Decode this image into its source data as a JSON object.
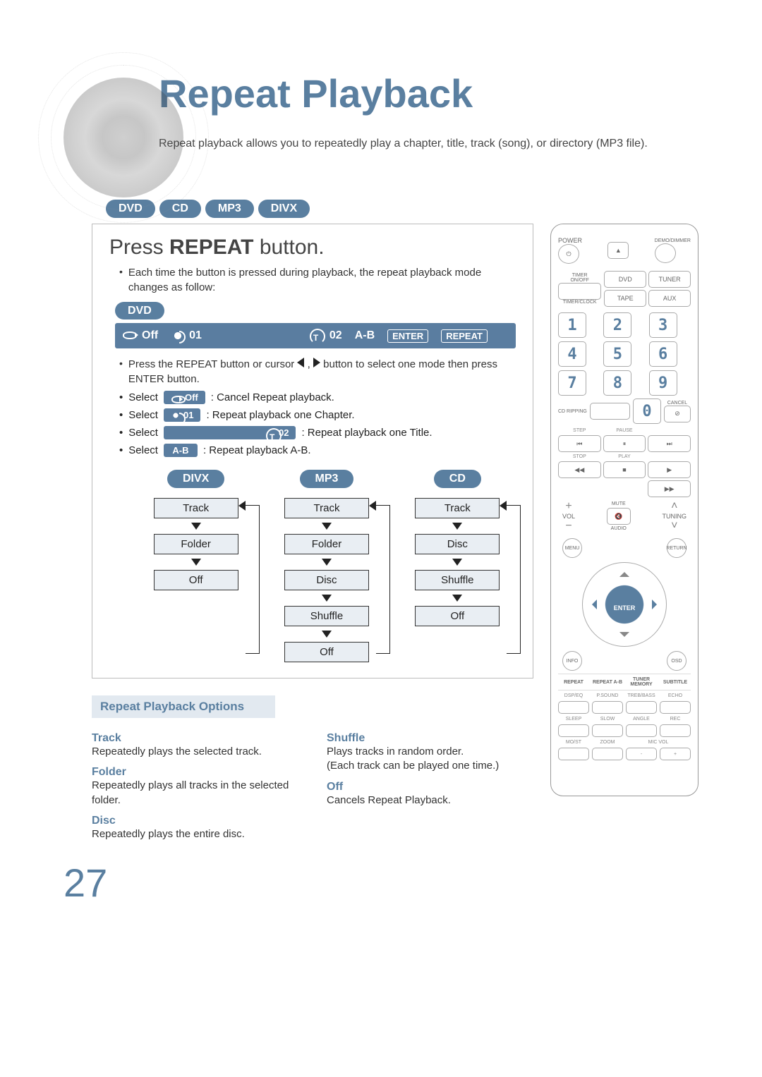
{
  "title": "Repeat Playback",
  "subtitle": "Repeat playback allows you to repeatedly play a chapter, title, track (song), or directory (MP3 file).",
  "formats": [
    "DVD",
    "CD",
    "MP3",
    "DIVX"
  ],
  "section": {
    "heading_pre": "Press ",
    "heading_bold": "REPEAT",
    "heading_post": " button.",
    "note": "Each time the button is pressed during playback, the repeat playback mode changes as follow:",
    "dvd_badge": "DVD",
    "osd": {
      "off": "Off",
      "ch": "01",
      "title": "02",
      "ab": "A-B",
      "enter": "ENTER",
      "repeat": "REPEAT"
    },
    "cursor_note_pre": "Press the REPEAT button or cursor ",
    "cursor_note_post": " button to select one mode then press ENTER button.",
    "selects": [
      {
        "label": "Select",
        "chip_icon": "loop",
        "chip": "Off",
        "desc": ": Cancel Repeat playback."
      },
      {
        "label": "Select",
        "chip_icon": "chapter",
        "chip": "01",
        "desc": ": Repeat playback one Chapter."
      },
      {
        "label": "Select",
        "chip_icon": "title",
        "chip": "02",
        "desc": ": Repeat playback one Title."
      },
      {
        "label": "Select",
        "chip_icon": "",
        "chip": "A-B",
        "desc": ": Repeat playback A-B."
      }
    ]
  },
  "flows": [
    {
      "badge": "DIVX",
      "steps": [
        "Track",
        "Folder",
        "Off"
      ]
    },
    {
      "badge": "MP3",
      "steps": [
        "Track",
        "Folder",
        "Disc",
        "Shuffle",
        "Off"
      ]
    },
    {
      "badge": "CD",
      "steps": [
        "Track",
        "Disc",
        "Shuffle",
        "Off"
      ]
    }
  ],
  "options": {
    "banner": "Repeat Playback Options",
    "colA": [
      {
        "t": "Track",
        "d": "Repeatedly plays the selected track."
      },
      {
        "t": "Folder",
        "d": "Repeatedly plays all tracks in the selected folder."
      },
      {
        "t": "Disc",
        "d": "Repeatedly plays the entire disc."
      }
    ],
    "colB": [
      {
        "t": "Shuffle",
        "d": "Plays tracks in random order.\n(Each track can be played one time.)"
      },
      {
        "t": "Off",
        "d": "Cancels Repeat Playback."
      }
    ]
  },
  "remote": {
    "power": "POWER",
    "demo": "DEMO/DIMMER",
    "timer_onoff": "TIMER\nON/OFF",
    "timer_clock": "TIMER/CLOCK",
    "dvd": "DVD",
    "tuner": "TUNER",
    "tape": "TAPE",
    "aux": "AUX",
    "numpad": [
      "1",
      "2",
      "3",
      "4",
      "5",
      "6",
      "7",
      "8",
      "9",
      "0"
    ],
    "cd_ripping": "CD RIPPING",
    "cancel": "CANCEL",
    "step": "STEP",
    "pause": "PAUSE",
    "stop": "STOP",
    "play": "PLAY",
    "mute": "MUTE",
    "vol": "VOL",
    "audio": "AUDIO",
    "tuning": "TUNING",
    "enter": "ENTER",
    "corners": [
      "MENU",
      "RETURN",
      "INFO",
      "OSD"
    ],
    "repeat_row": [
      "REPEAT",
      "REPEAT A-B",
      "TUNER\nMEMORY",
      "SUBTITLE"
    ],
    "grid_labels": [
      "DSP/EQ",
      "P.SOUND",
      "TREB/BASS",
      "ECHO",
      "SLEEP",
      "SLOW",
      "ANGLE",
      "REC",
      "MO/ST",
      "ZOOM",
      "MIC VOL",
      "+",
      "-"
    ]
  },
  "pageNumber": "27",
  "colors": {
    "accent": "#5a7fa0",
    "osd_bg": "#5a7da0",
    "box_bg": "#e9eef3",
    "banner_bg": "#e2e9f0",
    "text": "#222222"
  }
}
